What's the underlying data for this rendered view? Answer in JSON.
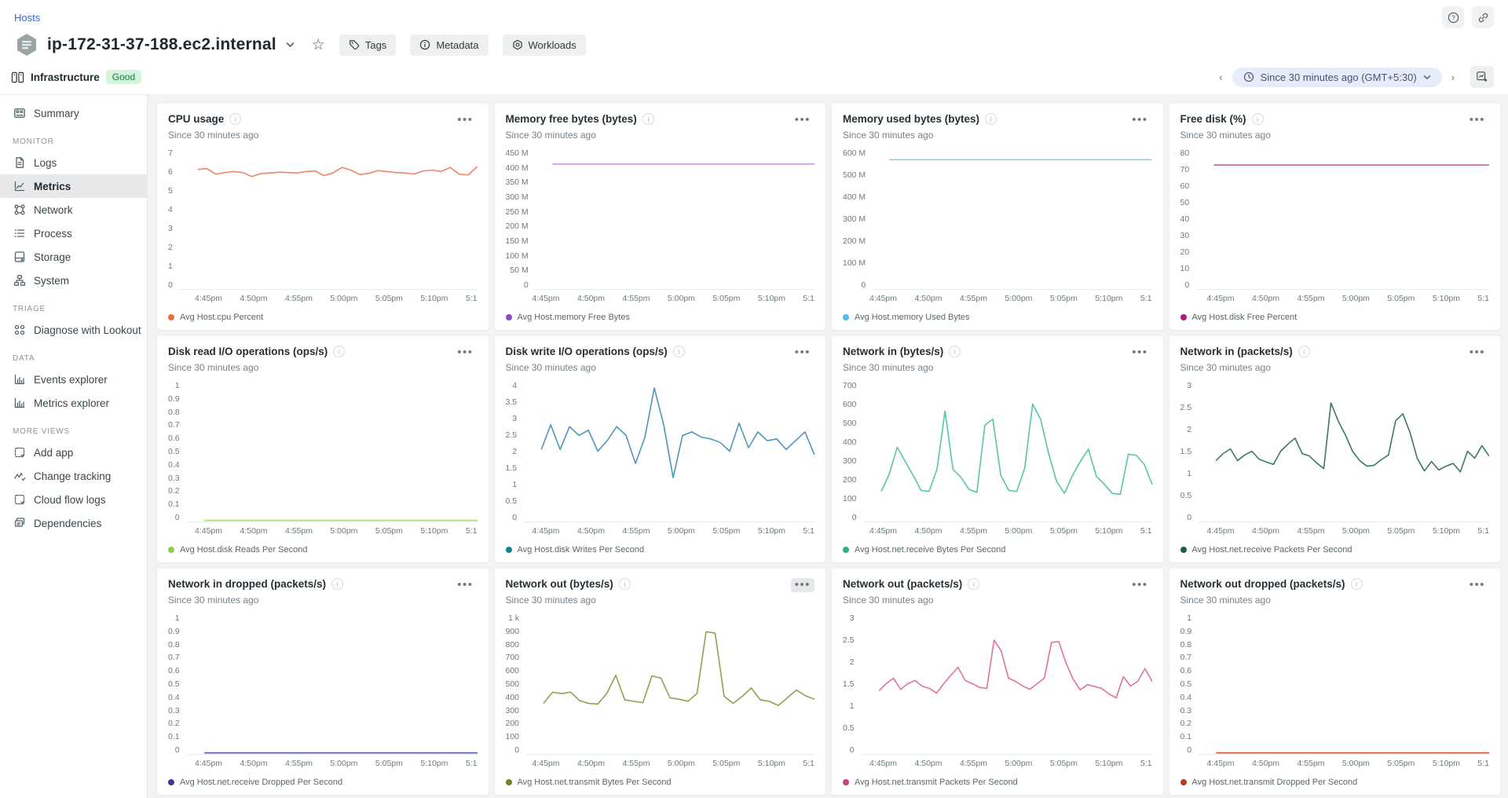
{
  "header": {
    "breadcrumb": "Hosts",
    "hostname": "ip-172-31-37-188.ec2.internal",
    "buttons": [
      "Tags",
      "Metadata",
      "Workloads"
    ],
    "infra_label": "Infrastructure",
    "status": "Good"
  },
  "time": {
    "range_label": "Since 30 minutes ago (GMT+5:30)"
  },
  "sidebar": {
    "sections": [
      {
        "header": "",
        "items": [
          {
            "label": "Summary",
            "icon": "summary-icon",
            "active": false
          }
        ]
      },
      {
        "header": "MONITOR",
        "items": [
          {
            "label": "Logs",
            "icon": "logs-icon",
            "active": false
          },
          {
            "label": "Metrics",
            "icon": "metrics-icon",
            "active": true
          },
          {
            "label": "Network",
            "icon": "network-icon",
            "active": false
          },
          {
            "label": "Process",
            "icon": "process-icon",
            "active": false
          },
          {
            "label": "Storage",
            "icon": "storage-icon",
            "active": false
          },
          {
            "label": "System",
            "icon": "system-icon",
            "active": false
          }
        ]
      },
      {
        "header": "TRIAGE",
        "items": [
          {
            "label": "Diagnose with Lookout",
            "icon": "lookout-icon",
            "active": false
          }
        ]
      },
      {
        "header": "DATA",
        "items": [
          {
            "label": "Events explorer",
            "icon": "bar-chart-icon",
            "active": false
          },
          {
            "label": "Metrics explorer",
            "icon": "bar-chart-icon",
            "active": false
          }
        ]
      },
      {
        "header": "MORE VIEWS",
        "items": [
          {
            "label": "Add app",
            "icon": "add-app-icon",
            "active": false
          },
          {
            "label": "Change tracking",
            "icon": "change-tracking-icon",
            "active": false
          },
          {
            "label": "Cloud flow logs",
            "icon": "cloud-flow-icon",
            "active": false
          },
          {
            "label": "Dependencies",
            "icon": "dependencies-icon",
            "active": false
          }
        ]
      }
    ]
  },
  "chart_data": [
    {
      "type": "line",
      "title": "CPU usage",
      "subtitle": "Since 30 minutes ago",
      "legend": "Avg Host.cpu Percent",
      "line_color": "#f0836a",
      "dot_color": "#ed6c3f",
      "ylim": [
        0,
        7
      ],
      "yticks": [
        "7",
        "6",
        "5",
        "4",
        "3",
        "2",
        "1",
        "0"
      ],
      "xticks": [
        "4:45pm",
        "4:50pm",
        "4:55pm",
        "5:00pm",
        "5:05pm",
        "5:10pm",
        "5:1"
      ],
      "values": [
        5.95,
        6.0,
        5.72,
        5.8,
        5.85,
        5.8,
        5.6,
        5.75,
        5.78,
        5.82,
        5.8,
        5.78,
        5.85,
        5.88,
        5.65,
        5.78,
        6.05,
        5.92,
        5.7,
        5.76,
        5.9,
        5.85,
        5.8,
        5.78,
        5.72,
        5.88,
        5.92,
        5.85,
        6.05,
        5.72,
        5.68,
        6.1
      ],
      "menu_hovered": false
    },
    {
      "type": "line",
      "title": "Memory free bytes (bytes)",
      "subtitle": "Since 30 minutes ago",
      "legend": "Avg Host.memory Free Bytes",
      "line_color": "#c490dd",
      "dot_color": "#9145c9",
      "ylim": [
        0,
        450
      ],
      "yticks": [
        "450 M",
        "400 M",
        "350 M",
        "300 M",
        "250 M",
        "200 M",
        "150 M",
        "100 M",
        "50 M",
        "0"
      ],
      "xticks": [
        "4:45pm",
        "4:50pm",
        "4:55pm",
        "5:00pm",
        "5:05pm",
        "5:10pm",
        "5:1"
      ],
      "values": [
        400,
        400,
        400,
        400,
        400,
        400,
        400,
        400,
        400,
        400,
        400,
        400,
        400,
        400,
        400,
        400,
        400,
        400,
        400,
        400,
        400,
        400,
        400,
        400,
        400,
        400,
        400,
        400,
        400,
        400
      ],
      "menu_hovered": false
    },
    {
      "type": "line",
      "title": "Memory used bytes (bytes)",
      "subtitle": "Since 30 minutes ago",
      "legend": "Avg Host.memory Used Bytes",
      "line_color": "#84d0ee",
      "dot_color": "#4fc1e9",
      "ylim": [
        0,
        600
      ],
      "yticks": [
        "600 M",
        "500 M",
        "400 M",
        "300 M",
        "200 M",
        "100 M",
        "0"
      ],
      "xticks": [
        "4:45pm",
        "4:50pm",
        "4:55pm",
        "5:00pm",
        "5:05pm",
        "5:10pm",
        "5:1"
      ],
      "values": [
        552,
        552,
        552,
        552,
        552,
        552,
        552,
        552,
        552,
        552,
        552,
        552,
        552,
        552,
        552,
        552,
        552,
        552,
        552,
        552,
        552,
        552,
        552,
        552,
        552,
        552,
        552,
        552,
        552,
        552
      ],
      "menu_hovered": false
    },
    {
      "type": "line",
      "title": "Free disk (%)",
      "subtitle": "Since 30 minutes ago",
      "legend": "Avg Host.disk Free Percent",
      "line_color": "#c75fa8",
      "dot_color": "#ad1a7d",
      "ylim": [
        0,
        80
      ],
      "yticks": [
        "80",
        "70",
        "60",
        "50",
        "40",
        "30",
        "20",
        "10",
        "0"
      ],
      "xticks": [
        "4:45pm",
        "4:50pm",
        "4:55pm",
        "5:00pm",
        "5:05pm",
        "5:10pm",
        "5:1"
      ],
      "values": [
        70.6,
        70.6,
        70.6,
        70.6,
        70.6,
        70.6,
        70.6,
        70.6,
        70.6,
        70.6,
        70.6,
        70.6,
        70.6,
        70.6,
        70.6,
        70.6,
        70.6,
        70.6,
        70.6,
        70.6,
        70.6,
        70.6,
        70.6,
        70.6,
        70.6,
        70.6,
        70.6,
        70.6,
        70.6,
        70.6
      ],
      "menu_hovered": false
    },
    {
      "type": "line",
      "title": "Disk read I/O operations (ops/s)",
      "subtitle": "Since 30 minutes ago",
      "legend": "Avg Host.disk Reads Per Second",
      "line_color": "#a3da74",
      "dot_color": "#8ccc52",
      "ylim": [
        0,
        1
      ],
      "yticks": [
        "1",
        "0.9",
        "0.8",
        "0.7",
        "0.6",
        "0.5",
        "0.4",
        "0.3",
        "0.2",
        "0.1",
        "0"
      ],
      "xticks": [
        "4:45pm",
        "4:50pm",
        "4:55pm",
        "5:00pm",
        "5:05pm",
        "5:10pm",
        "5:1"
      ],
      "values": [
        0,
        0,
        0,
        0,
        0,
        0,
        0,
        0,
        0,
        0,
        0,
        0,
        0,
        0,
        0,
        0,
        0,
        0,
        0,
        0,
        0,
        0,
        0,
        0,
        0,
        0,
        0,
        0,
        0,
        0
      ],
      "menu_hovered": false
    },
    {
      "type": "line",
      "title": "Disk write I/O operations (ops/s)",
      "subtitle": "Since 30 minutes ago",
      "legend": "Avg Host.disk Writes Per Second",
      "line_color": "#4f96ba",
      "dot_color": "#17808f",
      "ylim": [
        0,
        4
      ],
      "yticks": [
        "4",
        "3.5",
        "3",
        "2.5",
        "2",
        "1.5",
        "1",
        "0.5",
        "0"
      ],
      "xticks": [
        "4:45pm",
        "4:50pm",
        "4:55pm",
        "5:00pm",
        "5:05pm",
        "5:10pm",
        "5:1"
      ],
      "values": [
        2.05,
        2.75,
        2.05,
        2.7,
        2.45,
        2.6,
        2.0,
        2.3,
        2.7,
        2.45,
        1.65,
        2.4,
        3.8,
        2.75,
        1.25,
        2.45,
        2.55,
        2.4,
        2.35,
        2.25,
        2.0,
        2.8,
        2.1,
        2.55,
        2.3,
        2.35,
        2.05,
        2.3,
        2.55,
        1.9
      ],
      "menu_hovered": false
    },
    {
      "type": "line",
      "title": "Network in (bytes/s)",
      "subtitle": "Since 30 minutes ago",
      "legend": "Avg Host.net.receive Bytes Per Second",
      "line_color": "#58c79a",
      "dot_color": "#2bb184",
      "ylim": [
        0,
        700
      ],
      "yticks": [
        "700",
        "600",
        "500",
        "400",
        "300",
        "200",
        "100",
        "0"
      ],
      "xticks": [
        "4:45pm",
        "4:50pm",
        "4:55pm",
        "5:00pm",
        "5:05pm",
        "5:10pm",
        "5:1"
      ],
      "values": [
        150,
        235,
        370,
        300,
        230,
        155,
        150,
        260,
        550,
        260,
        220,
        160,
        145,
        480,
        510,
        230,
        155,
        150,
        265,
        585,
        510,
        340,
        200,
        140,
        230,
        300,
        360,
        225,
        185,
        140,
        135,
        335,
        330,
        285,
        185
      ],
      "menu_hovered": false
    },
    {
      "type": "line",
      "title": "Network in (packets/s)",
      "subtitle": "Since 30 minutes ago",
      "legend": "Avg Host.net.receive Packets Per Second",
      "line_color": "#3c7a5e",
      "dot_color": "#1d5f44",
      "ylim": [
        0,
        3
      ],
      "yticks": [
        "3",
        "2.5",
        "2",
        "1.5",
        "1",
        "0.5",
        "0"
      ],
      "xticks": [
        "4:45pm",
        "4:50pm",
        "4:55pm",
        "5:00pm",
        "5:05pm",
        "5:10pm",
        "5:1"
      ],
      "values": [
        1.3,
        1.45,
        1.55,
        1.3,
        1.42,
        1.5,
        1.33,
        1.27,
        1.22,
        1.5,
        1.65,
        1.78,
        1.45,
        1.4,
        1.25,
        1.13,
        2.53,
        2.15,
        1.85,
        1.5,
        1.3,
        1.18,
        1.2,
        1.32,
        1.42,
        2.15,
        2.3,
        1.9,
        1.35,
        1.08,
        1.28,
        1.1,
        1.18,
        1.24,
        1.06,
        1.5,
        1.35,
        1.62,
        1.4
      ],
      "menu_hovered": false
    },
    {
      "type": "line",
      "title": "Network in dropped (packets/s)",
      "subtitle": "Since 30 minutes ago",
      "legend": "Avg Host.net.receive Dropped Per Second",
      "line_color": "#5a55a5",
      "dot_color": "#3f3a8f",
      "ylim": [
        0,
        1
      ],
      "yticks": [
        "1",
        "0.9",
        "0.8",
        "0.7",
        "0.6",
        "0.5",
        "0.4",
        "0.3",
        "0.2",
        "0.1",
        "0"
      ],
      "xticks": [
        "4:45pm",
        "4:50pm",
        "4:55pm",
        "5:00pm",
        "5:05pm",
        "5:10pm",
        "5:1"
      ],
      "values": [
        0,
        0,
        0,
        0,
        0,
        0,
        0,
        0,
        0,
        0,
        0,
        0,
        0,
        0,
        0,
        0,
        0,
        0,
        0,
        0,
        0,
        0,
        0,
        0,
        0,
        0,
        0,
        0,
        0,
        0
      ],
      "menu_hovered": false
    },
    {
      "type": "line",
      "title": "Network out (bytes/s)",
      "subtitle": "Since 30 minutes ago",
      "legend": "Avg Host.net.transmit Bytes Per Second",
      "line_color": "#93a04e",
      "dot_color": "#6f8430",
      "ylim": [
        0,
        1000
      ],
      "yticks": [
        "1 k",
        "900",
        "800",
        "700",
        "600",
        "500",
        "400",
        "300",
        "200",
        "100",
        "0"
      ],
      "xticks": [
        "4:45pm",
        "4:50pm",
        "4:55pm",
        "5:00pm",
        "5:05pm",
        "5:10pm",
        "5:1"
      ],
      "values": [
        360,
        440,
        430,
        440,
        380,
        360,
        355,
        430,
        560,
        385,
        375,
        365,
        555,
        540,
        400,
        390,
        375,
        430,
        870,
        860,
        410,
        360,
        410,
        470,
        385,
        375,
        345,
        400,
        455,
        415,
        390
      ],
      "menu_hovered": true
    },
    {
      "type": "line",
      "title": "Network out (packets/s)",
      "subtitle": "Since 30 minutes ago",
      "legend": "Avg Host.net.transmit Packets Per Second",
      "line_color": "#e2719f",
      "dot_color": "#cc3f7f",
      "ylim": [
        0,
        3
      ],
      "yticks": [
        "3",
        "2.5",
        "2",
        "1.5",
        "1",
        "0.5",
        "0"
      ],
      "xticks": [
        "4:45pm",
        "4:50pm",
        "4:55pm",
        "5:00pm",
        "5:05pm",
        "5:10pm",
        "5:1"
      ],
      "values": [
        1.35,
        1.5,
        1.62,
        1.38,
        1.5,
        1.57,
        1.45,
        1.4,
        1.3,
        1.5,
        1.68,
        1.85,
        1.57,
        1.5,
        1.42,
        1.4,
        2.43,
        2.2,
        1.62,
        1.55,
        1.45,
        1.38,
        1.5,
        1.62,
        2.38,
        2.4,
        1.95,
        1.6,
        1.37,
        1.48,
        1.44,
        1.4,
        1.28,
        1.2,
        1.65,
        1.45,
        1.55,
        1.82,
        1.55
      ],
      "menu_hovered": false
    },
    {
      "type": "line",
      "title": "Network out dropped (packets/s)",
      "subtitle": "Since 30 minutes ago",
      "legend": "Avg Host.net.transmit Dropped Per Second",
      "line_color": "#c65633",
      "dot_color": "#b53e1d",
      "ylim": [
        0,
        1
      ],
      "yticks": [
        "1",
        "0.9",
        "0.8",
        "0.7",
        "0.6",
        "0.5",
        "0.4",
        "0.3",
        "0.2",
        "0.1",
        "0"
      ],
      "xticks": [
        "4:45pm",
        "4:50pm",
        "4:55pm",
        "5:00pm",
        "5:05pm",
        "5:10pm",
        "5:1"
      ],
      "values": [
        0,
        0,
        0,
        0,
        0,
        0,
        0,
        0,
        0,
        0,
        0,
        0,
        0,
        0,
        0,
        0,
        0,
        0,
        0,
        0,
        0,
        0,
        0,
        0,
        0,
        0,
        0,
        0,
        0,
        0
      ],
      "menu_hovered": false
    }
  ]
}
